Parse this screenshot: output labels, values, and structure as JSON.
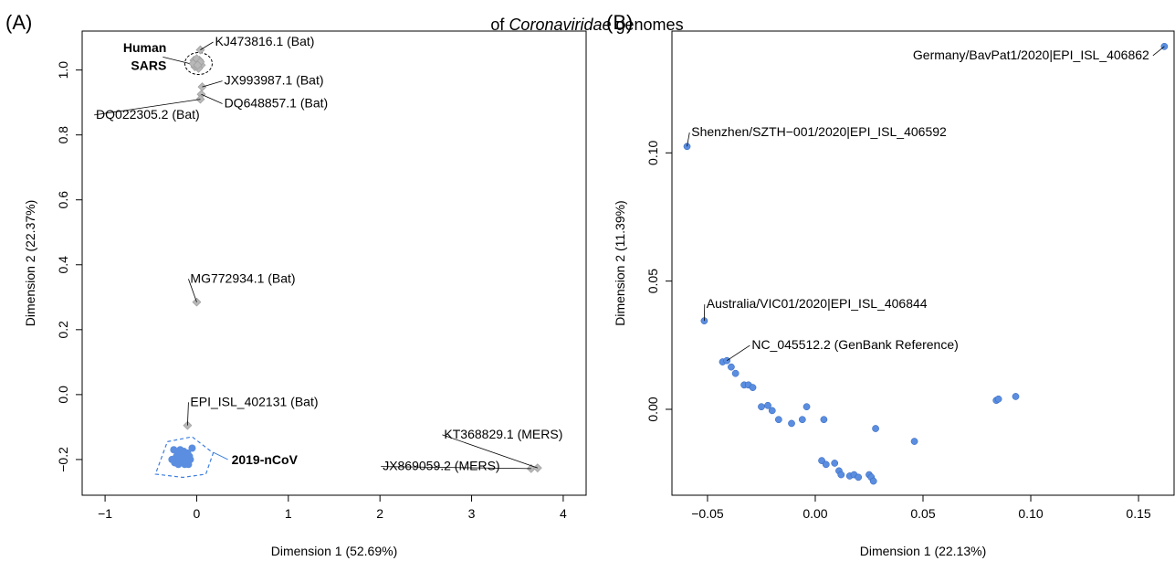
{
  "figure": {
    "title_prefix": "of",
    "title_italic": "Coronaviridae",
    "title_suffix": "genomes"
  },
  "chart_data": [
    {
      "type": "scatter",
      "panel": "(A)",
      "xlabel": "Dimension 1 (52.69%)",
      "ylabel": "Dimension 2 (22.37%)",
      "xlim": [
        -1.25,
        4.25
      ],
      "ylim": [
        -0.31,
        1.12
      ],
      "xticks": [
        -1,
        0,
        1,
        2,
        3,
        4
      ],
      "yticks": [
        -0.2,
        0.0,
        0.2,
        0.4,
        0.6,
        0.8,
        1.0
      ],
      "ytick_labels": [
        "-0.2",
        "0.0",
        "0.2",
        "0.4",
        "0.6",
        "0.8",
        "1.0"
      ],
      "grid": false,
      "colors": {
        "bat": "#b8b8b8",
        "ncov": "#5b8ee0",
        "hull_ncov": "#3d7ee0",
        "hull_sars": "#000000"
      },
      "gray_points": [
        {
          "x": 0.04,
          "y": 1.062
        },
        {
          "x": 0.06,
          "y": 0.948
        },
        {
          "x": 0.05,
          "y": 0.925
        },
        {
          "x": 0.04,
          "y": 0.91
        },
        {
          "x": 0.0,
          "y": 0.285
        },
        {
          "x": -0.1,
          "y": -0.095
        },
        {
          "x": 3.65,
          "y": -0.228
        },
        {
          "x": 3.72,
          "y": -0.226
        }
      ],
      "sars_points": [
        {
          "x": -0.03,
          "y": 1.03
        },
        {
          "x": 0.0,
          "y": 1.02
        },
        {
          "x": 0.03,
          "y": 1.03
        },
        {
          "x": 0.05,
          "y": 1.015
        },
        {
          "x": -0.02,
          "y": 1.01
        },
        {
          "x": 0.02,
          "y": 1.005
        },
        {
          "x": 0.0,
          "y": 1.035
        },
        {
          "x": 0.04,
          "y": 1.025
        },
        {
          "x": -0.04,
          "y": 1.02
        },
        {
          "x": 0.01,
          "y": 1.015
        }
      ],
      "ncov_points": [
        {
          "x": -0.25,
          "y": -0.17
        },
        {
          "x": -0.22,
          "y": -0.19
        },
        {
          "x": -0.2,
          "y": -0.2
        },
        {
          "x": -0.18,
          "y": -0.18
        },
        {
          "x": -0.15,
          "y": -0.19
        },
        {
          "x": -0.12,
          "y": -0.2
        },
        {
          "x": -0.1,
          "y": -0.18
        },
        {
          "x": -0.08,
          "y": -0.19
        },
        {
          "x": -0.05,
          "y": -0.165
        },
        {
          "x": -0.27,
          "y": -0.2
        },
        {
          "x": -0.24,
          "y": -0.21
        },
        {
          "x": -0.2,
          "y": -0.215
        },
        {
          "x": -0.16,
          "y": -0.205
        },
        {
          "x": -0.13,
          "y": -0.215
        },
        {
          "x": -0.1,
          "y": -0.21
        },
        {
          "x": -0.07,
          "y": -0.2
        },
        {
          "x": -0.18,
          "y": -0.17
        },
        {
          "x": -0.14,
          "y": -0.175
        },
        {
          "x": -0.21,
          "y": -0.185
        },
        {
          "x": -0.17,
          "y": -0.195
        },
        {
          "x": -0.11,
          "y": -0.195
        },
        {
          "x": -0.15,
          "y": -0.21
        },
        {
          "x": -0.09,
          "y": -0.215
        }
      ],
      "ncov_hull": [
        {
          "x": -0.32,
          "y": -0.145
        },
        {
          "x": -0.05,
          "y": -0.13
        },
        {
          "x": 0.18,
          "y": -0.18
        },
        {
          "x": 0.1,
          "y": -0.245
        },
        {
          "x": -0.15,
          "y": -0.255
        },
        {
          "x": -0.45,
          "y": -0.245
        }
      ],
      "sars_hull_center": {
        "x": 0.02,
        "y": 1.02
      },
      "annotations": [
        {
          "text": "KJ473816.1 (Bat)",
          "px": {
            "x": 0.04,
            "y": 1.062
          },
          "tx": {
            "x": 0.2,
            "y": 1.075
          },
          "anchor": "start"
        },
        {
          "text": "JX993987.1 (Bat)",
          "px": {
            "x": 0.06,
            "y": 0.948
          },
          "tx": {
            "x": 0.3,
            "y": 0.955
          },
          "anchor": "start"
        },
        {
          "text": "DQ648857.1 (Bat)",
          "px": {
            "x": 0.05,
            "y": 0.925
          },
          "tx": {
            "x": 0.3,
            "y": 0.885
          },
          "anchor": "start"
        },
        {
          "text": "DQ022305.2 (Bat)",
          "px": {
            "x": 0.04,
            "y": 0.91
          },
          "tx": {
            "x": -1.1,
            "y": 0.85
          },
          "anchor": "start"
        },
        {
          "text": "MG772934.1 (Bat)",
          "px": {
            "x": 0.0,
            "y": 0.285
          },
          "tx": {
            "x": -0.07,
            "y": 0.345
          },
          "anchor": "start"
        },
        {
          "text": "EPI_ISL_402131 (Bat)",
          "px": {
            "x": -0.1,
            "y": -0.095
          },
          "tx": {
            "x": -0.07,
            "y": -0.035
          },
          "anchor": "start"
        },
        {
          "text": "KT368829.1 (MERS)",
          "px": {
            "x": 3.72,
            "y": -0.226
          },
          "tx": {
            "x": 2.7,
            "y": -0.135
          },
          "anchor": "start"
        },
        {
          "text": "JX869059.2 (MERS)",
          "px": {
            "x": 3.65,
            "y": -0.228
          },
          "tx": {
            "x": 2.03,
            "y": -0.233
          },
          "anchor": "start"
        }
      ],
      "group_labels": [
        {
          "text_line1": "Human",
          "text_line2": "SARS"
        },
        {
          "text": "2019-nCoV"
        }
      ]
    },
    {
      "type": "scatter",
      "panel": "(B)",
      "xlabel": "Dimension 1 (22.13%)",
      "ylabel": "Dimension 2 (11.39%)",
      "xlim": [
        -0.0665,
        0.1665
      ],
      "ylim": [
        -0.0335,
        0.1475
      ],
      "xticks": [
        -0.05,
        0.0,
        0.05,
        0.1,
        0.15
      ],
      "xtick_labels": [
        "-0.05",
        "0.00",
        "0.05",
        "0.10",
        "0.15"
      ],
      "yticks": [
        0.0,
        0.05,
        0.1
      ],
      "ytick_labels": [
        "0.00",
        "0.05",
        "0.10"
      ],
      "grid": false,
      "colors": {
        "points": "#5b8ee0",
        "point_edge": "#2a5fb8"
      },
      "points": [
        {
          "x": 0.162,
          "y": 0.1415
        },
        {
          "x": -0.0595,
          "y": 0.1025
        },
        {
          "x": -0.0515,
          "y": 0.0345
        },
        {
          "x": -0.043,
          "y": 0.0185
        },
        {
          "x": -0.041,
          "y": 0.019
        },
        {
          "x": -0.039,
          "y": 0.0165
        },
        {
          "x": -0.037,
          "y": 0.014
        },
        {
          "x": -0.033,
          "y": 0.0095
        },
        {
          "x": -0.031,
          "y": 0.0095
        },
        {
          "x": -0.029,
          "y": 0.0085
        },
        {
          "x": -0.025,
          "y": 0.001
        },
        {
          "x": -0.022,
          "y": 0.0015
        },
        {
          "x": -0.02,
          "y": -0.0005
        },
        {
          "x": -0.017,
          "y": -0.004
        },
        {
          "x": -0.011,
          "y": -0.0055
        },
        {
          "x": -0.006,
          "y": -0.004
        },
        {
          "x": -0.004,
          "y": 0.001
        },
        {
          "x": 0.004,
          "y": -0.004
        },
        {
          "x": 0.003,
          "y": -0.02
        },
        {
          "x": 0.005,
          "y": -0.0215
        },
        {
          "x": 0.009,
          "y": -0.021
        },
        {
          "x": 0.011,
          "y": -0.024
        },
        {
          "x": 0.012,
          "y": -0.0255
        },
        {
          "x": 0.016,
          "y": -0.026
        },
        {
          "x": 0.018,
          "y": -0.0255
        },
        {
          "x": 0.02,
          "y": -0.0265
        },
        {
          "x": 0.025,
          "y": -0.0255
        },
        {
          "x": 0.026,
          "y": -0.0265
        },
        {
          "x": 0.027,
          "y": -0.028
        },
        {
          "x": 0.028,
          "y": -0.0075
        },
        {
          "x": 0.046,
          "y": -0.0125
        },
        {
          "x": 0.084,
          "y": 0.0035
        },
        {
          "x": 0.085,
          "y": 0.004
        },
        {
          "x": 0.093,
          "y": 0.005
        }
      ],
      "annotations": [
        {
          "text": "Germany/BavPat1/2020|EPI_ISL_406862",
          "px": {
            "x": 0.162,
            "y": 0.1415
          },
          "tx": {
            "x": 0.155,
            "y": 0.1365
          },
          "anchor": "end"
        },
        {
          "text": "Shenzhen/SZTH−001/2020|EPI_ISL_406592",
          "px": {
            "x": -0.0595,
            "y": 0.1025
          },
          "tx": {
            "x": -0.0575,
            "y": 0.1065
          },
          "anchor": "start"
        },
        {
          "text": "Australia/VIC01/2020|EPI_ISL_406844",
          "px": {
            "x": -0.0515,
            "y": 0.0345
          },
          "tx": {
            "x": -0.0505,
            "y": 0.0395
          },
          "anchor": "start"
        },
        {
          "text": "NC_045512.2 (GenBank Reference)",
          "px": {
            "x": -0.041,
            "y": 0.019
          },
          "tx": {
            "x": -0.0295,
            "y": 0.0235
          },
          "anchor": "start"
        }
      ]
    }
  ]
}
